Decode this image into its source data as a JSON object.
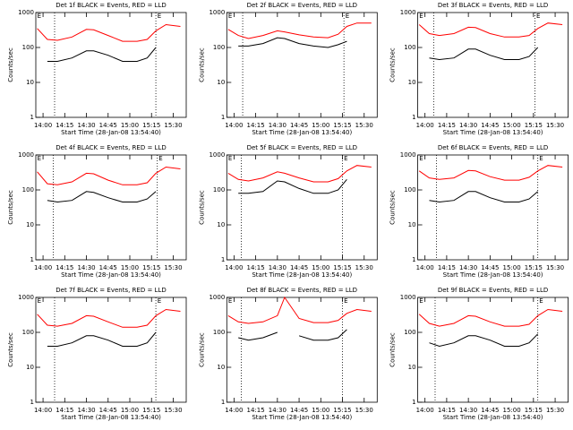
{
  "chart_data": [
    {
      "type": "line",
      "title": "Det 1f BLACK = Events, RED = LLD",
      "xlabel": "Start Time (28-Jan-08 13:54:40)",
      "ylabel": "Counts/sec",
      "log_scale": true,
      "x": [
        "13:56",
        "14:03",
        "14:10",
        "14:20",
        "14:30",
        "14:35",
        "14:45",
        "14:55",
        "15:05",
        "15:12",
        "15:18",
        "15:25",
        "15:35"
      ],
      "xlim": [
        "13:55",
        "15:39"
      ],
      "xticks": [
        "14:00",
        "14:15",
        "14:30",
        "14:45",
        "15:00",
        "15:15",
        "15:30"
      ],
      "ylim": [
        1,
        1000
      ],
      "yticks": [
        1,
        10,
        100,
        1000
      ],
      "vlines": [
        "14:08",
        "15:18"
      ],
      "annotations": [
        {
          "x": "13:56",
          "text": "E"
        },
        {
          "x": "15:19",
          "text": "E"
        }
      ],
      "series": [
        {
          "name": "Events",
          "color": "#000000",
          "values": [
            null,
            40,
            40,
            50,
            80,
            80,
            60,
            40,
            40,
            50,
            100,
            null,
            null
          ]
        },
        {
          "name": "LLD",
          "color": "#ff0000",
          "values": [
            350,
            170,
            160,
            200,
            330,
            320,
            220,
            150,
            150,
            170,
            300,
            450,
            400
          ]
        }
      ]
    },
    {
      "type": "line",
      "title": "Det 2f BLACK = Events, RED = LLD",
      "xlabel": "Start Time (28-Jan-08 13:54:40)",
      "ylabel": "Counts/sec",
      "log_scale": true,
      "x": [
        "13:56",
        "14:03",
        "14:10",
        "14:20",
        "14:30",
        "14:35",
        "14:45",
        "14:55",
        "15:05",
        "15:12",
        "15:18",
        "15:25",
        "15:35"
      ],
      "xlim": [
        "13:55",
        "15:39"
      ],
      "xticks": [
        "14:00",
        "14:15",
        "14:30",
        "14:45",
        "15:00",
        "15:15",
        "15:30"
      ],
      "ylim": [
        1,
        1000
      ],
      "yticks": [
        1,
        10,
        100,
        1000
      ],
      "vlines": [
        "14:06",
        "15:16"
      ],
      "annotations": [
        {
          "x": "13:56",
          "text": "E"
        },
        {
          "x": "15:17",
          "text": "E"
        }
      ],
      "series": [
        {
          "name": "Events",
          "color": "#000000",
          "values": [
            null,
            110,
            110,
            130,
            190,
            180,
            130,
            110,
            100,
            120,
            150,
            null,
            null
          ]
        },
        {
          "name": "LLD",
          "color": "#ff0000",
          "values": [
            330,
            220,
            180,
            220,
            300,
            280,
            230,
            200,
            190,
            240,
            400,
            500,
            500
          ]
        }
      ]
    },
    {
      "type": "line",
      "title": "Det 3f BLACK = Events, RED = LLD",
      "xlabel": "Start Time (28-Jan-08 13:54:40)",
      "ylabel": "Counts/sec",
      "log_scale": true,
      "x": [
        "13:56",
        "14:03",
        "14:10",
        "14:20",
        "14:30",
        "14:35",
        "14:45",
        "14:55",
        "15:05",
        "15:12",
        "15:18",
        "15:25",
        "15:35"
      ],
      "xlim": [
        "13:55",
        "15:39"
      ],
      "xticks": [
        "14:00",
        "14:15",
        "14:30",
        "14:45",
        "15:00",
        "15:15",
        "15:30"
      ],
      "ylim": [
        1,
        1000
      ],
      "yticks": [
        1,
        10,
        100,
        1000
      ],
      "vlines": [
        "14:06",
        "15:16"
      ],
      "annotations": [
        {
          "x": "13:56",
          "text": "E"
        },
        {
          "x": "15:17",
          "text": "E"
        }
      ],
      "series": [
        {
          "name": "Events",
          "color": "#000000",
          "values": [
            null,
            50,
            45,
            50,
            90,
            90,
            60,
            45,
            45,
            55,
            100,
            null,
            null
          ]
        },
        {
          "name": "LLD",
          "color": "#ff0000",
          "values": [
            450,
            250,
            220,
            250,
            380,
            370,
            250,
            200,
            200,
            220,
            350,
            500,
            450
          ]
        }
      ]
    },
    {
      "type": "line",
      "title": "Det 4f BLACK = Events, RED = LLD",
      "xlabel": "Start Time (28-Jan-08 13:54:40)",
      "ylabel": "Counts/sec",
      "log_scale": true,
      "x": [
        "13:56",
        "14:03",
        "14:10",
        "14:20",
        "14:30",
        "14:35",
        "14:45",
        "14:55",
        "15:05",
        "15:12",
        "15:18",
        "15:25",
        "15:35"
      ],
      "xlim": [
        "13:55",
        "15:39"
      ],
      "xticks": [
        "14:00",
        "14:15",
        "14:30",
        "14:45",
        "15:00",
        "15:15",
        "15:30"
      ],
      "ylim": [
        1,
        1000
      ],
      "yticks": [
        1,
        10,
        100,
        1000
      ],
      "vlines": [
        "14:07",
        "15:19"
      ],
      "annotations": [
        {
          "x": "13:56",
          "text": "E"
        },
        {
          "x": "15:20",
          "text": "E"
        }
      ],
      "series": [
        {
          "name": "Events",
          "color": "#000000",
          "values": [
            null,
            50,
            45,
            50,
            90,
            85,
            60,
            45,
            45,
            55,
            90,
            null,
            null
          ]
        },
        {
          "name": "LLD",
          "color": "#ff0000",
          "values": [
            330,
            150,
            140,
            170,
            300,
            290,
            190,
            140,
            140,
            160,
            300,
            450,
            400
          ]
        }
      ]
    },
    {
      "type": "line",
      "title": "Det 5f BLACK = Events, RED = LLD",
      "xlabel": "Start Time (28-Jan-08 13:54:40)",
      "ylabel": "Counts/sec",
      "log_scale": true,
      "x": [
        "13:56",
        "14:03",
        "14:10",
        "14:20",
        "14:30",
        "14:35",
        "14:45",
        "14:55",
        "15:05",
        "15:12",
        "15:18",
        "15:25",
        "15:35"
      ],
      "xlim": [
        "13:55",
        "15:39"
      ],
      "xticks": [
        "14:00",
        "14:15",
        "14:30",
        "14:45",
        "15:00",
        "15:15",
        "15:30"
      ],
      "ylim": [
        1,
        1000
      ],
      "yticks": [
        1,
        10,
        100,
        1000
      ],
      "vlines": [
        "14:05",
        "15:15"
      ],
      "annotations": [
        {
          "x": "13:56",
          "text": "E"
        },
        {
          "x": "15:16",
          "text": "E"
        }
      ],
      "series": [
        {
          "name": "Events",
          "color": "#000000",
          "values": [
            null,
            80,
            80,
            90,
            180,
            170,
            110,
            80,
            80,
            100,
            200,
            null,
            null
          ]
        },
        {
          "name": "LLD",
          "color": "#ff0000",
          "values": [
            300,
            200,
            180,
            220,
            330,
            300,
            220,
            170,
            170,
            210,
            350,
            500,
            450
          ]
        }
      ]
    },
    {
      "type": "line",
      "title": "Det 6f BLACK = Events, RED = LLD",
      "xlabel": "Start Time (28-Jan-08 13:54:40)",
      "ylabel": "Counts/sec",
      "log_scale": true,
      "x": [
        "13:56",
        "14:03",
        "14:10",
        "14:20",
        "14:30",
        "14:35",
        "14:45",
        "14:55",
        "15:05",
        "15:12",
        "15:18",
        "15:25",
        "15:35"
      ],
      "xlim": [
        "13:55",
        "15:39"
      ],
      "xticks": [
        "14:00",
        "14:15",
        "14:30",
        "14:45",
        "15:00",
        "15:15",
        "15:30"
      ],
      "ylim": [
        1,
        1000
      ],
      "yticks": [
        1,
        10,
        100,
        1000
      ],
      "vlines": [
        "14:08",
        "15:18"
      ],
      "annotations": [
        {
          "x": "13:56",
          "text": "E"
        },
        {
          "x": "15:19",
          "text": "E"
        }
      ],
      "series": [
        {
          "name": "Events",
          "color": "#000000",
          "values": [
            null,
            50,
            45,
            50,
            90,
            90,
            60,
            45,
            45,
            55,
            90,
            null,
            null
          ]
        },
        {
          "name": "LLD",
          "color": "#ff0000",
          "values": [
            350,
            220,
            200,
            220,
            360,
            350,
            240,
            190,
            190,
            230,
            350,
            500,
            450
          ]
        }
      ]
    },
    {
      "type": "line",
      "title": "Det 7f BLACK = Events, RED = LLD",
      "xlabel": "Start Time (28-Jan-08 13:54:40)",
      "ylabel": "Counts/sec",
      "log_scale": true,
      "x": [
        "13:56",
        "14:03",
        "14:10",
        "14:20",
        "14:30",
        "14:35",
        "14:45",
        "14:55",
        "15:05",
        "15:12",
        "15:18",
        "15:25",
        "15:35"
      ],
      "xlim": [
        "13:55",
        "15:39"
      ],
      "xticks": [
        "14:00",
        "14:15",
        "14:30",
        "14:45",
        "15:00",
        "15:15",
        "15:30"
      ],
      "ylim": [
        1,
        1000
      ],
      "yticks": [
        1,
        10,
        100,
        1000
      ],
      "vlines": [
        "14:08",
        "15:18"
      ],
      "annotations": [
        {
          "x": "13:56",
          "text": "E"
        },
        {
          "x": "15:19",
          "text": "E"
        }
      ],
      "series": [
        {
          "name": "Events",
          "color": "#000000",
          "values": [
            null,
            40,
            40,
            50,
            80,
            80,
            60,
            40,
            40,
            50,
            100,
            null,
            null
          ]
        },
        {
          "name": "LLD",
          "color": "#ff0000",
          "values": [
            330,
            160,
            150,
            180,
            300,
            290,
            200,
            140,
            140,
            160,
            300,
            450,
            400
          ]
        }
      ]
    },
    {
      "type": "line",
      "title": "Det 8f BLACK = Events, RED = LLD",
      "xlabel": "Start Time (28-Jan-08 13:54:40)",
      "ylabel": "Counts/sec",
      "log_scale": true,
      "x": [
        "13:56",
        "14:03",
        "14:10",
        "14:20",
        "14:30",
        "14:35",
        "14:45",
        "14:55",
        "15:05",
        "15:12",
        "15:18",
        "15:25",
        "15:35"
      ],
      "xlim": [
        "13:55",
        "15:39"
      ],
      "xticks": [
        "14:00",
        "14:15",
        "14:30",
        "14:45",
        "15:00",
        "15:15",
        "15:30"
      ],
      "ylim": [
        1,
        1000
      ],
      "yticks": [
        1,
        10,
        100,
        1000
      ],
      "vlines": [
        "14:05",
        "15:15"
      ],
      "annotations": [
        {
          "x": "13:56",
          "text": "E"
        },
        {
          "x": "15:16",
          "text": "E"
        }
      ],
      "series": [
        {
          "name": "Events",
          "color": "#000000",
          "values": [
            null,
            70,
            60,
            70,
            100,
            null,
            80,
            60,
            60,
            70,
            120,
            null,
            null
          ]
        },
        {
          "name": "LLD",
          "color": "#ff0000",
          "values": [
            300,
            200,
            180,
            200,
            300,
            1000,
            250,
            190,
            190,
            220,
            350,
            450,
            400
          ]
        }
      ]
    },
    {
      "type": "line",
      "title": "Det 9f BLACK = Events, RED = LLD",
      "xlabel": "Start Time (28-Jan-08 13:54:40)",
      "ylabel": "Counts/sec",
      "log_scale": true,
      "x": [
        "13:56",
        "14:03",
        "14:10",
        "14:20",
        "14:30",
        "14:35",
        "14:45",
        "14:55",
        "15:05",
        "15:12",
        "15:18",
        "15:25",
        "15:35"
      ],
      "xlim": [
        "13:55",
        "15:39"
      ],
      "xticks": [
        "14:00",
        "14:15",
        "14:30",
        "14:45",
        "15:00",
        "15:15",
        "15:30"
      ],
      "ylim": [
        1,
        1000
      ],
      "yticks": [
        1,
        10,
        100,
        1000
      ],
      "vlines": [
        "14:07",
        "15:18"
      ],
      "annotations": [
        {
          "x": "13:56",
          "text": "E"
        },
        {
          "x": "15:19",
          "text": "E"
        }
      ],
      "series": [
        {
          "name": "Events",
          "color": "#000000",
          "values": [
            null,
            50,
            40,
            50,
            80,
            80,
            60,
            40,
            40,
            50,
            90,
            null,
            null
          ]
        },
        {
          "name": "LLD",
          "color": "#ff0000",
          "values": [
            330,
            180,
            150,
            180,
            300,
            290,
            200,
            150,
            150,
            170,
            300,
            450,
            400
          ]
        }
      ]
    }
  ]
}
